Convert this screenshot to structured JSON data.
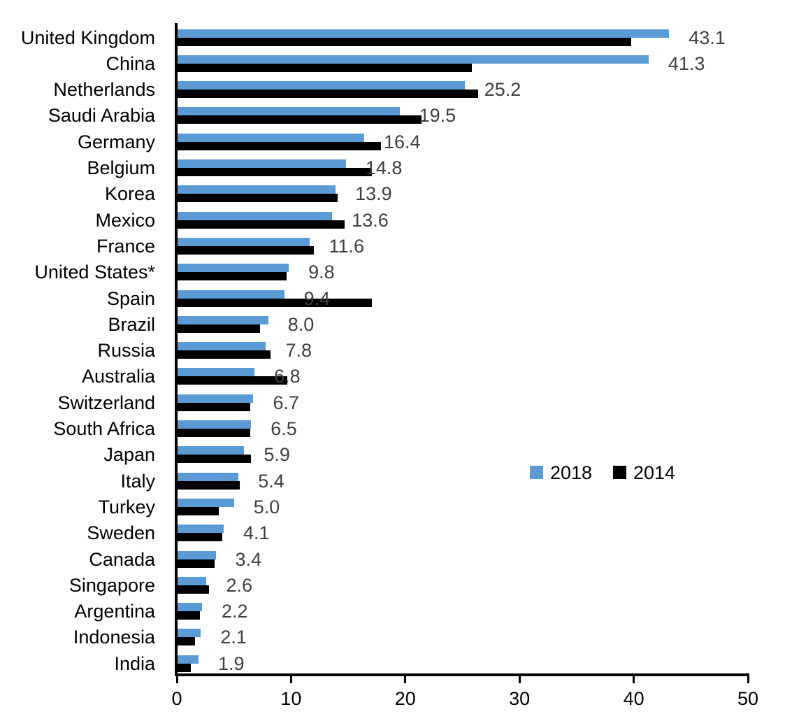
{
  "chart_data": {
    "type": "bar",
    "orientation": "horizontal",
    "title": "",
    "categories": [
      "United Kingdom",
      "China",
      "Netherlands",
      "Saudi Arabia",
      "Germany",
      "Belgium",
      "Korea",
      "Mexico",
      "France",
      "United States*",
      "Spain",
      "Brazil",
      "Russia",
      "Australia",
      "Switzerland",
      "South Africa",
      "Japan",
      "Italy",
      "Turkey",
      "Sweden",
      "Canada",
      "Singapore",
      "Argentina",
      "Indonesia",
      "India"
    ],
    "series": [
      {
        "name": "2018",
        "color": "#5B9BD5",
        "values": [
          43.1,
          41.3,
          25.2,
          19.5,
          16.4,
          14.8,
          13.9,
          13.6,
          11.6,
          9.8,
          9.4,
          8.0,
          7.8,
          6.8,
          6.7,
          6.5,
          5.9,
          5.4,
          5.0,
          4.1,
          3.4,
          2.6,
          2.2,
          2.1,
          1.9
        ]
      },
      {
        "name": "2014",
        "color": "#000000",
        "values": [
          39.8,
          25.8,
          26.4,
          21.4,
          17.9,
          17.1,
          14.1,
          14.7,
          12.0,
          9.6,
          17.1,
          7.3,
          8.2,
          9.7,
          6.4,
          6.4,
          6.5,
          5.5,
          3.7,
          4.0,
          3.3,
          2.8,
          2.0,
          1.6,
          1.2
        ]
      }
    ],
    "data_labels": [
      "43.1",
      "41.3",
      "25.2",
      "19.5",
      "16.4",
      "14.8",
      "13.9",
      "13.6",
      "11.6",
      "9.8",
      "9.4",
      "8.0",
      "7.8",
      "6.8",
      "6.7",
      "6.5",
      "5.9",
      "5.4",
      "5.0",
      "4.1",
      "3.4",
      "2.6",
      "2.2",
      "2.1",
      "1.9"
    ],
    "data_label_color": "#3F3F3F",
    "xlabel": "",
    "ylabel": "",
    "xlim": [
      0,
      50
    ],
    "x_ticks": [
      0,
      10,
      20,
      30,
      40,
      50
    ],
    "grid": false,
    "axis_color": "#000000",
    "legend_position": "middle-right"
  },
  "legend": {
    "items": [
      {
        "label": "2018",
        "color": "#5B9BD5"
      },
      {
        "label": "2014",
        "color": "#000000"
      }
    ]
  }
}
